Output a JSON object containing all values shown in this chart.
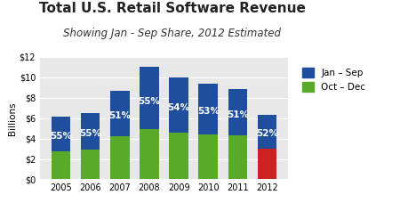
{
  "title": "Total U.S. Retail Software Revenue",
  "subtitle": "Showing Jan - Sep Share, 2012 Estimated",
  "years": [
    "2005",
    "2006",
    "2007",
    "2008",
    "2009",
    "2010",
    "2011",
    "2012"
  ],
  "jan_sep": [
    3.36,
    3.575,
    4.437,
    6.05,
    5.4,
    4.982,
    4.5135,
    3.276
  ],
  "oct_dec": [
    2.75,
    2.925,
    4.263,
    4.95,
    4.6,
    4.418,
    4.3365,
    3.024
  ],
  "oct_dec_color_normal": "#5aaa2a",
  "oct_dec_color_2012": "#cc2222",
  "jan_sep_color": "#1f4e9e",
  "pct_labels": [
    "55%",
    "55%",
    "51%",
    "55%",
    "54%",
    "53%",
    "51%",
    "52%"
  ],
  "ylabel": "Billions",
  "ylim": [
    0,
    12
  ],
  "yticks": [
    0,
    2,
    4,
    6,
    8,
    10,
    12
  ],
  "ytick_labels": [
    "$0",
    "$2",
    "$4",
    "$6",
    "$8",
    "$10",
    "$12"
  ],
  "legend_jan_sep": "Jan – Sep",
  "legend_oct_dec": "Oct – Dec",
  "bg_color": "#e8e8e8",
  "bar_width": 0.65,
  "title_fontsize": 11,
  "subtitle_fontsize": 8.5,
  "label_fontsize": 7.5
}
